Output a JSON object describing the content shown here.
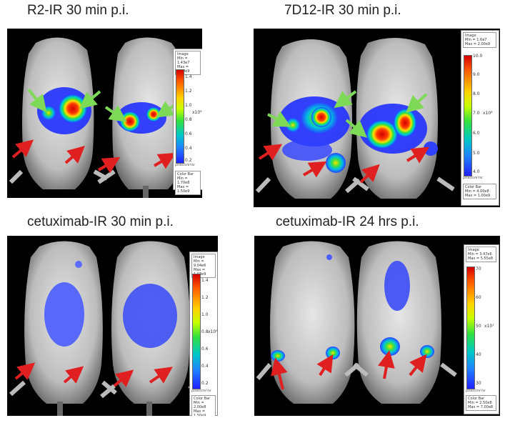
{
  "panels": [
    {
      "title": "R2-IR 30 min p.i.",
      "colorbar": {
        "image_lines": [
          "Image",
          "Min = 1.43e7",
          "Max = 2.19e9"
        ],
        "ticks": [
          "1.4",
          "1.2",
          "1.0",
          "0.8",
          "0.6",
          "0.4",
          "0.2"
        ],
        "unit": "x10⁹",
        "bottom_unit": "p/sec/cm²/sr",
        "bar_lines": [
          "Color Bar",
          "Min = 1.70e8",
          "Max = 1.50e9"
        ]
      }
    },
    {
      "title": "7D12-IR 30 min p.i.",
      "colorbar": {
        "image_lines": [
          "Image",
          "Min = 1.6e7",
          "Max = 2.00e9"
        ],
        "ticks": [
          "10.0",
          "9.0",
          "8.0",
          "7.0",
          "6.0",
          "5.0",
          "4.0"
        ],
        "unit": "x10⁸",
        "bottom_unit": "p/sec/cm²/sr",
        "bar_lines": [
          "Color Bar",
          "Min = 4.00e8",
          "Max = 1.00e9"
        ]
      }
    },
    {
      "title": "cetuximab-IR 30 min p.i.",
      "colorbar": {
        "image_lines": [
          "Image",
          "Min = 9.04e6",
          "Max = 1.03e9"
        ],
        "ticks": [
          "1.4",
          "1.2",
          "1.0",
          "0.8",
          "0.6",
          "0.4",
          "0.2"
        ],
        "unit": "x10⁹",
        "bottom_unit": "p/sec/cm²/sr",
        "bar_lines": [
          "Color Bar",
          "Min = 2.00e8",
          "Max = 1.50e9"
        ]
      }
    },
    {
      "title": "cetuximab-IR 24 hrs p.i.",
      "colorbar": {
        "image_lines": [
          "Image",
          "Min = 3.47e6",
          "Max = 5.55e8"
        ],
        "ticks": [
          "70",
          "60",
          "50",
          "40",
          "30"
        ],
        "unit": "x10⁷",
        "bottom_unit": "p/sec/cm²/sr",
        "bar_lines": [
          "Color Bar",
          "Min = 2.50e8",
          "Max = 7.00e8"
        ]
      }
    }
  ],
  "colors": {
    "background": "#000000",
    "arrow_green": "#7ed957",
    "arrow_red": "#e02020",
    "mouse_skin": "#cfcfcf"
  }
}
